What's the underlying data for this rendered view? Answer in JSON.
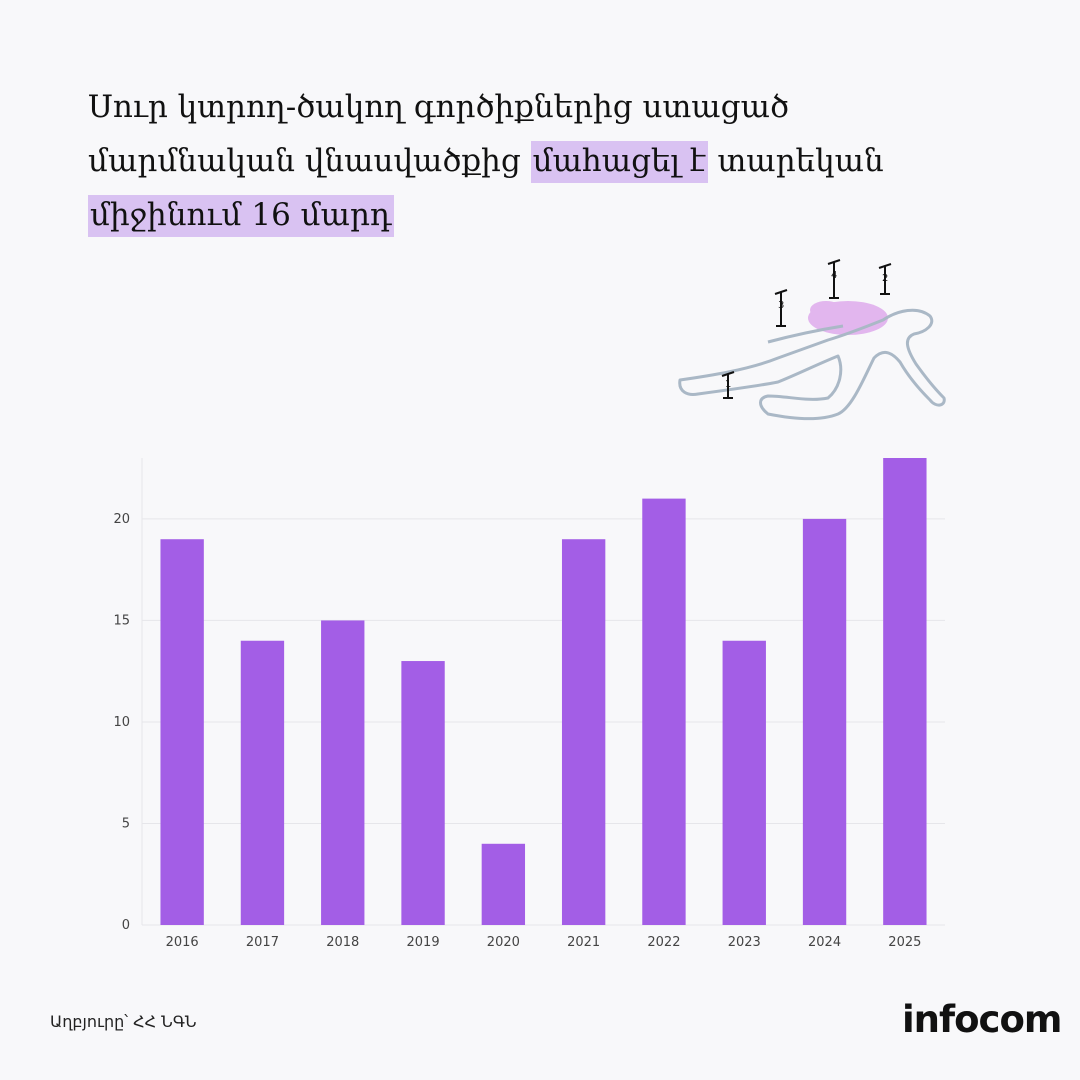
{
  "headline": {
    "part1": "Սուր կտրող-ծակող գործիքներից ստացած մարմնական վնասվածքից ",
    "highlight1": "մահացել է",
    "part2": " տարեկան ",
    "highlight2": "միջինում 16 մարդ"
  },
  "illustration": {
    "icon": "crime-scene-body-outline-icon",
    "markers": [
      "1",
      "2",
      "3",
      "4"
    ],
    "outline_color": "#aab8c6",
    "stain_color": "#e2b6ee"
  },
  "chart_data": {
    "type": "bar",
    "categories": [
      "2016",
      "2017",
      "2018",
      "2019",
      "2020",
      "2021",
      "2022",
      "2023",
      "2024",
      "2025"
    ],
    "values": [
      19,
      14,
      15,
      13,
      4,
      19,
      21,
      14,
      20,
      23
    ],
    "ylim": [
      0,
      23
    ],
    "yticks": [
      0,
      5,
      10,
      15,
      20
    ],
    "bar_color": "#a35ee6",
    "grid": true
  },
  "footer": {
    "source": "Աղբյուրը՝ ՀՀ ՆԳՆ",
    "logo": "infocom"
  }
}
